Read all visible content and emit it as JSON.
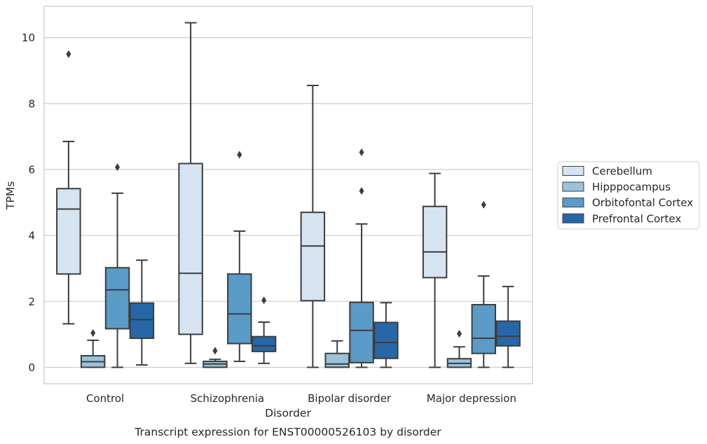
{
  "chart_data": {
    "type": "box",
    "caption": "Transcript expression for ENST00000526103 by disorder",
    "xlabel": "Disorder",
    "ylabel": "TPMs",
    "ylim": [
      -0.5,
      10.95
    ],
    "yticks": [
      0,
      2,
      4,
      6,
      8,
      10
    ],
    "grid": "horizontal",
    "legend_position": "right",
    "categories": [
      "Control",
      "Schizophrenia",
      "Bipolar disorder",
      "Major depression"
    ],
    "series": [
      {
        "name": "Cerebellum",
        "color": "#d6e4f2",
        "boxes": [
          {
            "whisker_low": 1.32,
            "q1": 2.83,
            "median": 4.8,
            "q3": 5.42,
            "whisker_high": 6.85,
            "outliers": [
              9.5
            ]
          },
          {
            "whisker_low": 0.12,
            "q1": 1.0,
            "median": 2.85,
            "q3": 6.18,
            "whisker_high": 10.45,
            "outliers": []
          },
          {
            "whisker_low": 0.0,
            "q1": 2.02,
            "median": 3.68,
            "q3": 4.7,
            "whisker_high": 8.55,
            "outliers": []
          },
          {
            "whisker_low": 0.0,
            "q1": 2.72,
            "median": 3.5,
            "q3": 4.88,
            "whisker_high": 5.88,
            "outliers": []
          }
        ]
      },
      {
        "name": "Hipppocampus",
        "color": "#9bc2dd",
        "boxes": [
          {
            "whisker_low": 0.0,
            "q1": 0.0,
            "median": 0.17,
            "q3": 0.35,
            "whisker_high": 0.82,
            "outliers": [
              1.04
            ]
          },
          {
            "whisker_low": 0.0,
            "q1": 0.0,
            "median": 0.1,
            "q3": 0.18,
            "whisker_high": 0.24,
            "outliers": [
              0.5
            ]
          },
          {
            "whisker_low": 0.0,
            "q1": 0.0,
            "median": 0.1,
            "q3": 0.42,
            "whisker_high": 0.8,
            "outliers": []
          },
          {
            "whisker_low": 0.0,
            "q1": 0.0,
            "median": 0.12,
            "q3": 0.26,
            "whisker_high": 0.62,
            "outliers": [
              1.02
            ]
          }
        ]
      },
      {
        "name": "Orbitofontal Cortex",
        "color": "#5a9bc8",
        "boxes": [
          {
            "whisker_low": 0.0,
            "q1": 1.17,
            "median": 2.35,
            "q3": 3.02,
            "whisker_high": 5.28,
            "outliers": [
              6.07
            ]
          },
          {
            "whisker_low": 0.18,
            "q1": 0.72,
            "median": 1.62,
            "q3": 2.83,
            "whisker_high": 4.13,
            "outliers": [
              6.45
            ]
          },
          {
            "whisker_low": 0.0,
            "q1": 0.14,
            "median": 1.12,
            "q3": 1.97,
            "whisker_high": 4.35,
            "outliers": [
              5.35,
              6.52
            ]
          },
          {
            "whisker_low": 0.0,
            "q1": 0.42,
            "median": 0.88,
            "q3": 1.9,
            "whisker_high": 2.77,
            "outliers": [
              4.93
            ]
          }
        ]
      },
      {
        "name": "Prefrontal Cortex",
        "color": "#2767a7",
        "boxes": [
          {
            "whisker_low": 0.07,
            "q1": 0.88,
            "median": 1.45,
            "q3": 1.95,
            "whisker_high": 3.25,
            "outliers": []
          },
          {
            "whisker_low": 0.12,
            "q1": 0.48,
            "median": 0.65,
            "q3": 0.93,
            "whisker_high": 1.37,
            "outliers": [
              2.03
            ]
          },
          {
            "whisker_low": 0.0,
            "q1": 0.27,
            "median": 0.75,
            "q3": 1.36,
            "whisker_high": 1.96,
            "outliers": []
          },
          {
            "whisker_low": 0.0,
            "q1": 0.65,
            "median": 0.94,
            "q3": 1.4,
            "whisker_high": 2.45,
            "outliers": []
          }
        ]
      }
    ]
  }
}
